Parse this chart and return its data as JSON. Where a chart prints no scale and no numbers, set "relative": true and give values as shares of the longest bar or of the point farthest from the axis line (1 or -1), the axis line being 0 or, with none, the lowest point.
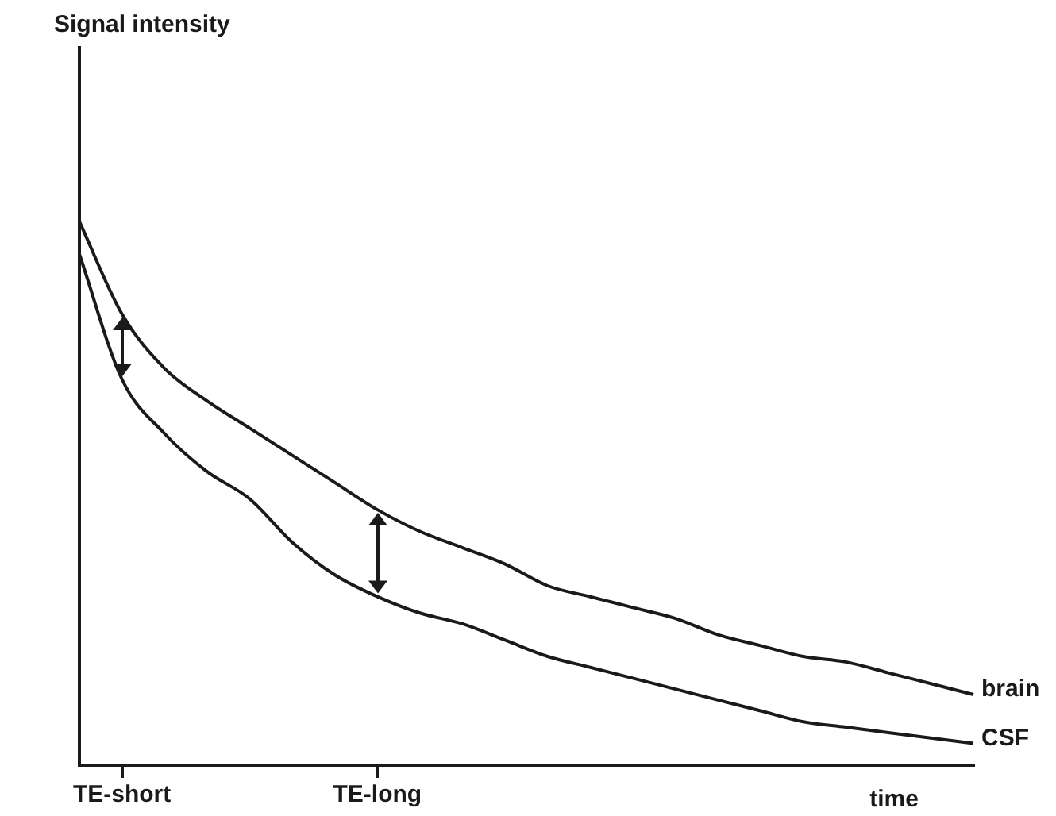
{
  "chart_data": {
    "type": "line",
    "relative": true,
    "annotations": [
      "Signal intensity"
    ],
    "xlabel": "time",
    "categories": [
      null,
      "TE-short",
      null,
      null,
      null,
      null,
      null,
      "TE-long",
      null,
      null,
      null,
      null,
      null,
      null,
      null,
      null,
      null,
      null,
      null,
      null,
      null,
      null
    ],
    "series": [
      {
        "name": "brain",
        "color": "#1a1a1a",
        "values": [
          1,
          0.83,
          0.73,
          0.67,
          0.62,
          0.57,
          0.52,
          0.47,
          0.43,
          0.4,
          0.37,
          0.33,
          0.31,
          0.29,
          0.27,
          0.24,
          0.22,
          0.2,
          0.19,
          0.17,
          0.15,
          0.13
        ]
      },
      {
        "name": "CSF",
        "color": "#1a1a1a",
        "values": [
          0.94,
          0.71,
          0.61,
          0.54,
          0.49,
          0.41,
          0.35,
          0.31,
          0.28,
          0.26,
          0.23,
          0.2,
          0.18,
          0.16,
          0.14,
          0.12,
          0.1,
          0.08,
          0.07,
          0.06,
          0.05,
          0.04
        ]
      }
    ],
    "legend": false,
    "grid": false,
    "marker": "none",
    "line_style": "solid"
  }
}
